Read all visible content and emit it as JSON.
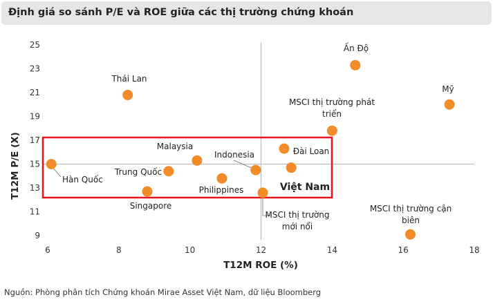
{
  "header": {
    "title": "Định giá so sánh P/E và ROE giữa các thị trường chứng khoán"
  },
  "footer": {
    "source": "Nguồn: Phòng phân tích Chứng khoán Mirae Asset Việt Nam, dữ liệu Bloomberg"
  },
  "chart_data": {
    "type": "scatter",
    "xlabel": "T12M ROE (%)",
    "ylabel": "T12M P/E (X)",
    "xlim": [
      6,
      18
    ],
    "ylim": [
      9,
      25
    ],
    "xticks": [
      6,
      8,
      10,
      12,
      14,
      16,
      18
    ],
    "yticks": [
      9,
      11,
      13,
      15,
      17,
      19,
      21,
      23,
      25
    ],
    "reference_lines": {
      "x": 12,
      "y": 15
    },
    "grid": false,
    "colors": {
      "marker": "#f28c28",
      "highlight_box": "#e8131b",
      "reference_line": "#b5b5b5"
    },
    "highlighted": "Việt Nam",
    "points": [
      {
        "label": "Hàn Quốc",
        "x": 6.1,
        "y": 15.0
      },
      {
        "label": "Thái Lan",
        "x": 8.25,
        "y": 20.8
      },
      {
        "label": "Singapore",
        "x": 8.8,
        "y": 12.7
      },
      {
        "label": "Trung Quốc",
        "x": 9.4,
        "y": 14.4
      },
      {
        "label": "Malaysia",
        "x": 10.2,
        "y": 15.3
      },
      {
        "label": "Philippines",
        "x": 10.9,
        "y": 13.8
      },
      {
        "label": "Indonesia",
        "x": 11.85,
        "y": 14.5
      },
      {
        "label": "MSCI thị trường mới nổi",
        "x": 12.05,
        "y": 12.6
      },
      {
        "label": "Đài Loan",
        "x": 12.65,
        "y": 16.3
      },
      {
        "label": "Việt Nam",
        "x": 12.85,
        "y": 14.7
      },
      {
        "label": "MSCI thị trường phát triển",
        "x": 14.0,
        "y": 17.8
      },
      {
        "label": "Ấn Độ",
        "x": 14.65,
        "y": 23.3
      },
      {
        "label": "MSCI thị trường cận biên",
        "x": 16.2,
        "y": 9.1
      },
      {
        "label": "Mỹ",
        "x": 17.3,
        "y": 20.0
      }
    ]
  }
}
